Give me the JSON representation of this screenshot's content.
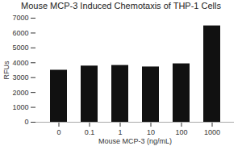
{
  "chart_data": {
    "type": "bar",
    "title": "Mouse MCP-3 Induced Chemotaxis of THP-1 Cells",
    "xlabel": "Mouse MCP-3 (ng/mL)",
    "ylabel": "RFUs",
    "categories": [
      "0",
      "0.1",
      "1",
      "10",
      "100",
      "1000"
    ],
    "values": [
      3500,
      3780,
      3820,
      3720,
      3930,
      6480
    ],
    "color": "#111111",
    "ylim": [
      0,
      7000
    ],
    "yticks": [
      0,
      1000,
      2000,
      3000,
      4000,
      5000,
      6000,
      7000
    ]
  }
}
